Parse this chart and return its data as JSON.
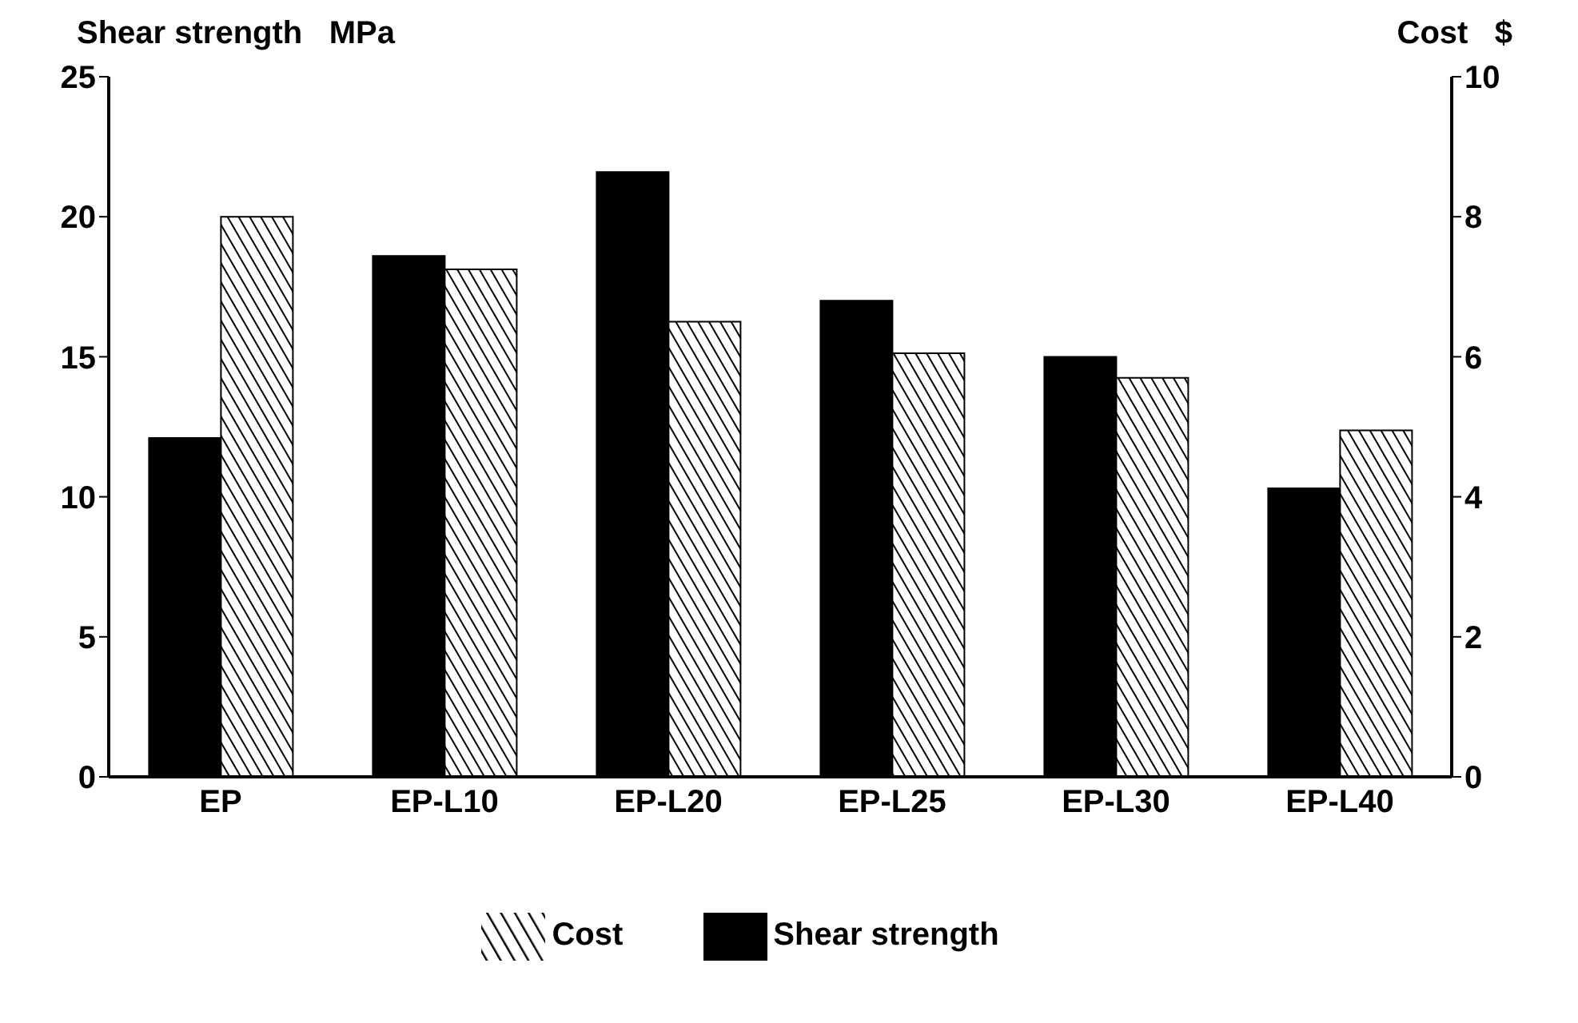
{
  "chart_data": {
    "type": "bar",
    "ylabel": "Shear strength   MPa",
    "y2label": "Cost   $",
    "categories": [
      "EP",
      "EP-L10",
      "EP-L20",
      "EP-L25",
      "EP-L30",
      "EP-L40"
    ],
    "series": [
      {
        "name": "Shear strength",
        "color": "#000000",
        "values": [
          12.1,
          18.6,
          21.6,
          17.0,
          15.0,
          10.3
        ]
      },
      {
        "name": "Cost",
        "color": "#000000",
        "axis": "y2",
        "values": [
          8.0,
          7.25,
          6.5,
          6.05,
          5.7,
          4.95
        ]
      }
    ],
    "ylim": [
      0,
      25
    ],
    "yticks": [
      0,
      5,
      10,
      15,
      20,
      25
    ],
    "y2lim": [
      0,
      10
    ],
    "y2ticks": [
      0,
      2,
      4,
      6,
      8,
      10
    ],
    "grid": false,
    "legend": "bottom"
  }
}
